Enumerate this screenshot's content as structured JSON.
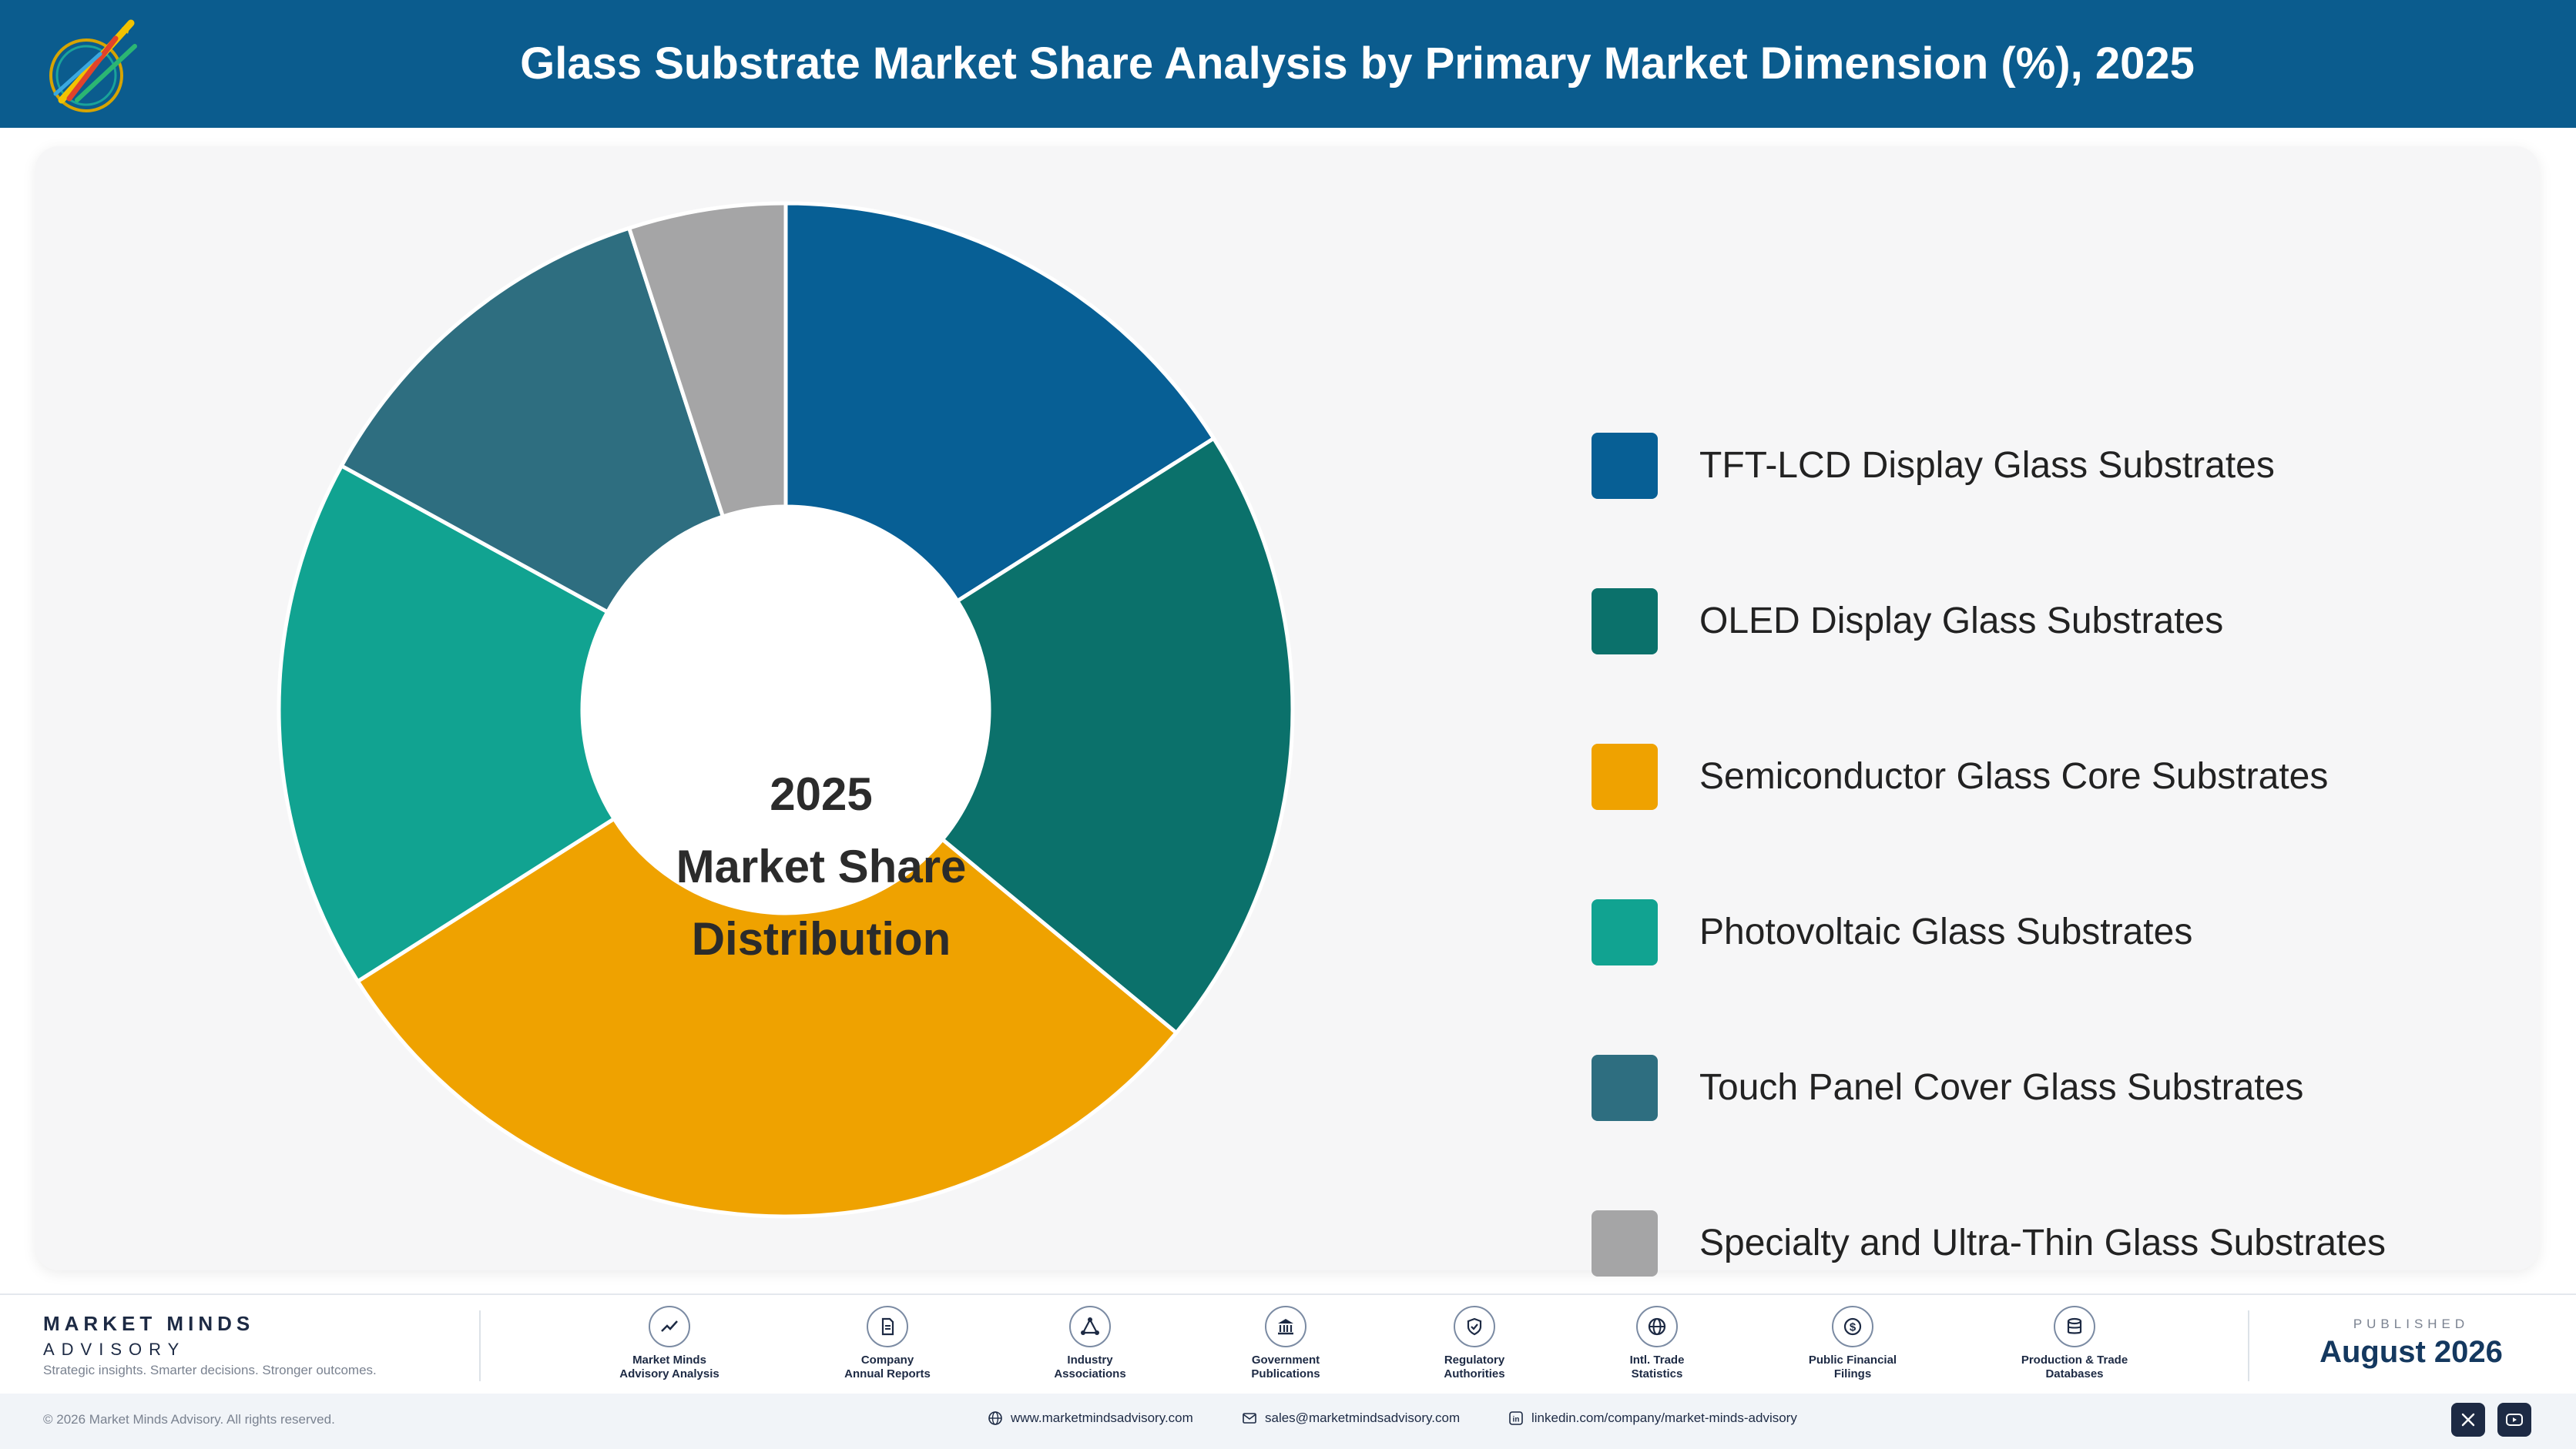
{
  "header": {
    "title": "Glass Substrate Market Share Analysis by Primary Market Dimension (%), 2025",
    "logo_icon": "rocket-logo-icon"
  },
  "chart_data": {
    "type": "pie",
    "title": "Glass Substrate Market Share Analysis by Primary Market Dimension (%), 2025",
    "center_label": [
      "2025",
      "Market Share",
      "Distribution"
    ],
    "legend_position": "right",
    "categories": [
      "TFT-LCD Display Glass Substrates",
      "OLED Display Glass Substrates",
      "Semiconductor Glass Core Substrates",
      "Photovoltaic Glass Substrates",
      "Touch Panel Cover Glass Substrates",
      "Specialty and Ultra-Thin Glass Substrates"
    ],
    "values": [
      16,
      20,
      30,
      17,
      12,
      5
    ],
    "colors": [
      "#075f95",
      "#0b716b",
      "#efa200",
      "#11a391",
      "#2e6e80",
      "#a5a5a6"
    ]
  },
  "footer": {
    "brand_name": "MARKET MINDS",
    "brand_sub": "ADVISORY",
    "tagline": "Strategic insights. Smarter decisions. Stronger outcomes.",
    "sources": [
      {
        "line1": "Market Minds",
        "line2": "Advisory Analysis",
        "icon": "chart-line-icon"
      },
      {
        "line1": "Company",
        "line2": "Annual Reports",
        "icon": "document-icon"
      },
      {
        "line1": "Industry",
        "line2": "Associations",
        "icon": "network-icon"
      },
      {
        "line1": "Government",
        "line2": "Publications",
        "icon": "building-icon"
      },
      {
        "line1": "Regulatory",
        "line2": "Authorities",
        "icon": "shield-check-icon"
      },
      {
        "line1": "Intl. Trade",
        "line2": "Statistics",
        "icon": "globe-icon"
      },
      {
        "line1": "Public Financial",
        "line2": "Filings",
        "icon": "dollar-icon"
      },
      {
        "line1": "Production & Trade",
        "line2": "Databases",
        "icon": "database-icon"
      }
    ],
    "published_label": "PUBLISHED",
    "published_date": "August 2026"
  },
  "bottom": {
    "copyright": "© 2026 Market Minds Advisory. All rights reserved.",
    "website": "www.marketmindsadvisory.com",
    "email": "sales@marketmindsadvisory.com",
    "linkedin": "linkedin.com/company/market-minds-advisory",
    "social_icons": [
      "x-icon",
      "youtube-icon"
    ]
  }
}
